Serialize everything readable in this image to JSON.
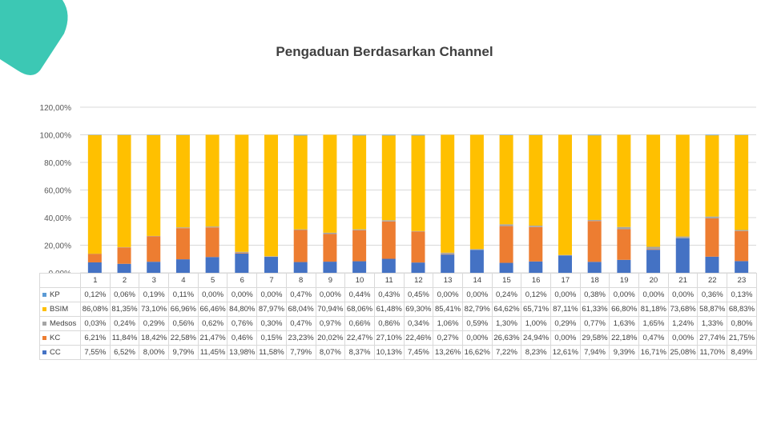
{
  "colors": {
    "KP": "#5b9bd5",
    "BSIM": "#ffc000",
    "Medsos": "#a5a5a5",
    "KC": "#ed7d31",
    "CC": "#4472c4",
    "accent": "#3cc8b4"
  },
  "chart_data": {
    "type": "bar",
    "stacked": true,
    "title": "Pengaduan Berdasarkan Channel",
    "ytick_labels": [
      "0,00%",
      "20,00%",
      "40,00%",
      "60,00%",
      "80,00%",
      "100,00%",
      "120,00%"
    ],
    "ylim": [
      0,
      120
    ],
    "grid": true,
    "legend": "data-table",
    "categories": [
      "1",
      "2",
      "3",
      "4",
      "5",
      "6",
      "7",
      "8",
      "9",
      "10",
      "11",
      "12",
      "13",
      "14",
      "15",
      "16",
      "17",
      "18",
      "19",
      "20",
      "21",
      "22",
      "23"
    ],
    "series": [
      {
        "name": "KP",
        "color": "#5b9bd5",
        "values": [
          0.12,
          0.06,
          0.19,
          0.11,
          0.0,
          0.0,
          0.0,
          0.47,
          0.0,
          0.44,
          0.43,
          0.45,
          0.0,
          0.0,
          0.24,
          0.12,
          0.0,
          0.38,
          0.0,
          0.0,
          0.0,
          0.36,
          0.13
        ],
        "labels": [
          "0,12%",
          "0,06%",
          "0,19%",
          "0,11%",
          "0,00%",
          "0,00%",
          "0,00%",
          "0,47%",
          "0,00%",
          "0,44%",
          "0,43%",
          "0,45%",
          "0,00%",
          "0,00%",
          "0,24%",
          "0,12%",
          "0,00%",
          "0,38%",
          "0,00%",
          "0,00%",
          "0,00%",
          "0,36%",
          "0,13%"
        ]
      },
      {
        "name": "BSIM",
        "color": "#ffc000",
        "values": [
          86.08,
          81.35,
          73.1,
          66.96,
          66.46,
          84.8,
          87.97,
          68.04,
          70.94,
          68.06,
          61.48,
          69.3,
          85.41,
          82.79,
          64.62,
          65.71,
          87.11,
          61.33,
          66.8,
          81.18,
          73.68,
          58.87,
          68.83
        ],
        "labels": [
          "86,08%",
          "81,35%",
          "73,10%",
          "66,96%",
          "66,46%",
          "84,80%",
          "87,97%",
          "68,04%",
          "70,94%",
          "68,06%",
          "61,48%",
          "69,30%",
          "85,41%",
          "82,79%",
          "64,62%",
          "65,71%",
          "87,11%",
          "61,33%",
          "66,80%",
          "81,18%",
          "73,68%",
          "58,87%",
          "68,83%"
        ]
      },
      {
        "name": "Medsos",
        "color": "#a5a5a5",
        "values": [
          0.03,
          0.24,
          0.29,
          0.56,
          0.62,
          0.76,
          0.3,
          0.47,
          0.97,
          0.66,
          0.86,
          0.34,
          1.06,
          0.59,
          1.3,
          1.0,
          0.29,
          0.77,
          1.63,
          1.65,
          1.24,
          1.33,
          0.8
        ],
        "labels": [
          "0,03%",
          "0,24%",
          "0,29%",
          "0,56%",
          "0,62%",
          "0,76%",
          "0,30%",
          "0,47%",
          "0,97%",
          "0,66%",
          "0,86%",
          "0,34%",
          "1,06%",
          "0,59%",
          "1,30%",
          "1,00%",
          "0,29%",
          "0,77%",
          "1,63%",
          "1,65%",
          "1,24%",
          "1,33%",
          "0,80%"
        ]
      },
      {
        "name": "KC",
        "color": "#ed7d31",
        "values": [
          6.21,
          11.84,
          18.42,
          22.58,
          21.47,
          0.46,
          0.15,
          23.23,
          20.02,
          22.47,
          27.1,
          22.46,
          0.27,
          0.0,
          26.63,
          24.94,
          0.0,
          29.58,
          22.18,
          0.47,
          0.0,
          27.74,
          21.75
        ],
        "labels": [
          "6,21%",
          "11,84%",
          "18,42%",
          "22,58%",
          "21,47%",
          "0,46%",
          "0,15%",
          "23,23%",
          "20,02%",
          "22,47%",
          "27,10%",
          "22,46%",
          "0,27%",
          "0,00%",
          "26,63%",
          "24,94%",
          "0,00%",
          "29,58%",
          "22,18%",
          "0,47%",
          "0,00%",
          "27,74%",
          "21,75%"
        ]
      },
      {
        "name": "CC",
        "color": "#4472c4",
        "values": [
          7.55,
          6.52,
          8.0,
          9.79,
          11.45,
          13.98,
          11.58,
          7.79,
          8.07,
          8.37,
          10.13,
          7.45,
          13.26,
          16.62,
          7.22,
          8.23,
          12.61,
          7.94,
          9.39,
          16.71,
          25.08,
          11.7,
          8.49
        ],
        "labels": [
          "7,55%",
          "6,52%",
          "8,00%",
          "9,79%",
          "11,45%",
          "13,98%",
          "11,58%",
          "7,79%",
          "8,07%",
          "8,37%",
          "10,13%",
          "7,45%",
          "13,26%",
          "16,62%",
          "7,22%",
          "8,23%",
          "12,61%",
          "7,94%",
          "9,39%",
          "16,71%",
          "25,08%",
          "11,70%",
          "8,49%"
        ]
      }
    ]
  }
}
